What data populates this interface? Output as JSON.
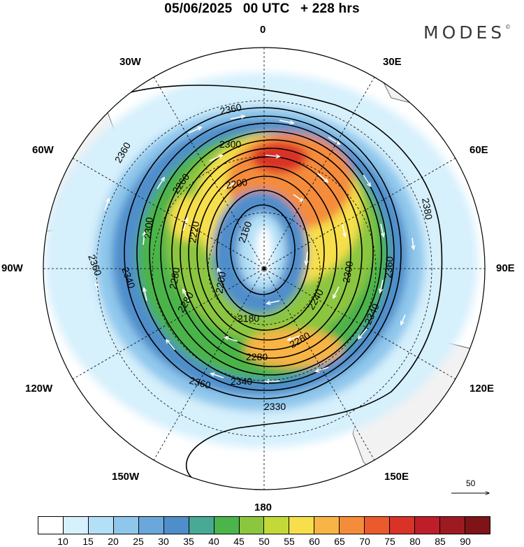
{
  "header": {
    "date": "05/06/2025",
    "time": "00 UTC",
    "lead": "+ 228 hrs",
    "brand": "MODES",
    "brand_mark": "©"
  },
  "map": {
    "projection": "polar-stereographic-south",
    "longitude_labels": {
      "top": "0",
      "bottom": "180",
      "left": "90W",
      "right": "90E",
      "upper_left": "30W",
      "upper_right": "30E",
      "mid_left_high": "60W",
      "mid_right_high": "60E",
      "mid_left_low": "120W",
      "mid_right_low": "120E",
      "lower_left": "150W",
      "lower_right": "150E"
    },
    "contour_labels": [
      "2360",
      "2300",
      "2360",
      "2260",
      "2200",
      "2220",
      "2160",
      "2300",
      "2280",
      "2200",
      "2180",
      "2240",
      "2260",
      "2280",
      "2300",
      "2340",
      "2360",
      "2280",
      "2340",
      "2360",
      "2330",
      "2360",
      "2340",
      "2380"
    ],
    "vector_reference": {
      "value": "50"
    },
    "colors": {
      "land": "#f2f2f2",
      "ocean": "#ffffff",
      "contour": "#000000",
      "wind_arrow": "#ffffff"
    }
  },
  "colorbar": {
    "ticks": [
      "10",
      "15",
      "20",
      "25",
      "30",
      "35",
      "40",
      "45",
      "50",
      "55",
      "60",
      "65",
      "70",
      "75",
      "80",
      "85",
      "90"
    ],
    "colors": [
      "#ffffff",
      "#d6f0fc",
      "#b3e0f7",
      "#8fc7ec",
      "#6aa8dc",
      "#4f8ecb",
      "#48a994",
      "#4bb44a",
      "#8cc63f",
      "#c3d93a",
      "#f7df4b",
      "#f8b445",
      "#f48c3b",
      "#ea5a2d",
      "#d93327",
      "#bd1e2a",
      "#9e1a22",
      "#7e1418"
    ]
  }
}
